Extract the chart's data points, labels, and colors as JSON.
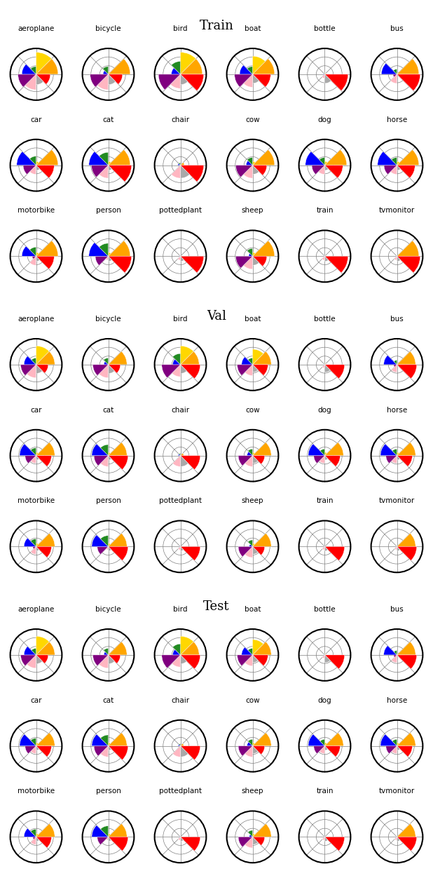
{
  "title_fontsize": 13,
  "label_fontsize": 7.5,
  "colors": {
    "yellow": "#FFD700",
    "orange": "#FFA500",
    "green": "#228B22",
    "red": "#FF0000",
    "blue": "#0000FF",
    "purple": "#800080",
    "pink": "#FFB6C1",
    "gray": "#A9A9A9",
    "lightpink": "#FFB6C1",
    "white": "#FFFFFF"
  },
  "categories": [
    "aeroplane",
    "bicycle",
    "bird",
    "boat",
    "bottle",
    "bus",
    "car",
    "cat",
    "chair",
    "cow",
    "dog",
    "horse",
    "motorbike",
    "person",
    "pottedplant",
    "sheep",
    "train",
    "tvmonitor"
  ],
  "sections": [
    "Train",
    "Val",
    "Test"
  ],
  "sector_colors": [
    "#FFD700",
    "#FFA500",
    "#228B22",
    "#FF0000",
    "#0000FF",
    "#800080",
    "#FFB6C1",
    "#A9A9A9"
  ],
  "train_data": {
    "aeroplane": [
      2.5,
      2.5,
      0.8,
      1.5,
      1.5,
      2.0,
      1.8,
      1.2
    ],
    "bicycle": [
      0.3,
      2.5,
      0.5,
      1.5,
      1.5,
      2.0,
      1.8,
      1.2
    ],
    "bird": [
      2.5,
      2.5,
      1.5,
      2.5,
      1.0,
      2.5,
      1.5,
      1.2
    ],
    "boat": [
      2.0,
      2.5,
      0.8,
      2.0,
      0.5,
      2.0,
      1.5,
      1.0
    ],
    "bottle": [
      0.1,
      0.1,
      0.1,
      2.5,
      0.1,
      0.1,
      0.5,
      0.5
    ],
    "bus": [
      0.1,
      2.5,
      0.5,
      2.5,
      1.5,
      0.5,
      1.0,
      0.3
    ],
    "car": [
      0.5,
      2.5,
      1.0,
      2.0,
      2.0,
      1.5,
      1.0,
      0.5
    ],
    "cat": [
      0.5,
      2.5,
      1.5,
      2.5,
      2.0,
      2.0,
      1.5,
      0.5
    ],
    "chair": [
      0.1,
      0.5,
      0.3,
      2.5,
      2.0,
      0.1,
      1.5,
      1.5
    ],
    "cow": [
      0.5,
      2.5,
      0.5,
      1.5,
      0.8,
      2.0,
      1.5,
      1.0
    ],
    "dog": [
      0.5,
      2.5,
      0.8,
      2.0,
      2.0,
      1.5,
      1.0,
      0.5
    ],
    "horse": [
      0.5,
      2.5,
      0.8,
      2.0,
      2.0,
      1.5,
      1.0,
      0.5
    ],
    "motorbike": [
      0.5,
      2.5,
      1.0,
      2.0,
      1.5,
      0.5,
      1.0,
      0.5
    ],
    "person": [
      0.5,
      2.5,
      1.5,
      2.5,
      2.0,
      1.5,
      0.5,
      0.5
    ],
    "pottedplant": [
      0.1,
      0.1,
      0.1,
      2.5,
      0.1,
      0.1,
      0.5,
      0.5
    ],
    "sheep": [
      0.5,
      2.5,
      0.5,
      1.5,
      0.5,
      2.0,
      1.5,
      1.0
    ],
    "train": [
      0.1,
      0.1,
      0.1,
      2.5,
      0.1,
      0.1,
      1.0,
      0.5
    ],
    "tvmonitor": [
      0.1,
      2.5,
      0.1,
      2.5,
      0.1,
      0.1,
      0.5,
      0.5
    ]
  },
  "val_data": {
    "aeroplane": [
      2.0,
      2.0,
      0.5,
      1.5,
      2.0,
      1.5,
      1.5,
      1.0
    ],
    "bicycle": [
      0.3,
      2.0,
      0.5,
      1.5,
      1.5,
      1.5,
      1.5,
      1.0
    ],
    "bird": [
      2.0,
      2.0,
      1.5,
      2.0,
      1.0,
      2.0,
      1.5,
      1.0
    ],
    "boat": [
      1.5,
      2.0,
      0.5,
      1.5,
      0.5,
      1.5,
      1.5,
      0.8
    ],
    "bottle": [
      0.1,
      0.1,
      0.1,
      2.0,
      0.1,
      0.1,
      0.5,
      0.3
    ],
    "bus": [
      0.1,
      2.0,
      0.5,
      2.0,
      1.5,
      0.5,
      1.0,
      0.3
    ],
    "car": [
      0.5,
      2.0,
      0.8,
      1.5,
      2.0,
      1.5,
      1.0,
      0.5
    ],
    "cat": [
      0.5,
      2.0,
      1.0,
      2.0,
      2.0,
      2.0,
      1.5,
      0.5
    ],
    "chair": [
      0.1,
      0.5,
      0.3,
      2.0,
      1.5,
      0.1,
      1.5,
      1.2
    ],
    "cow": [
      0.5,
      2.0,
      0.5,
      1.5,
      0.8,
      1.5,
      1.5,
      0.8
    ],
    "dog": [
      0.5,
      2.0,
      0.8,
      1.5,
      2.0,
      1.5,
      1.0,
      0.5
    ],
    "horse": [
      0.5,
      2.0,
      0.8,
      1.5,
      2.0,
      1.5,
      1.0,
      0.5
    ],
    "motorbike": [
      0.5,
      2.0,
      0.8,
      1.5,
      1.5,
      0.5,
      1.0,
      0.5
    ],
    "person": [
      0.5,
      2.0,
      1.0,
      2.0,
      2.0,
      1.5,
      0.5,
      0.5
    ],
    "pottedplant": [
      0.1,
      0.1,
      0.1,
      2.0,
      0.1,
      0.1,
      0.5,
      0.3
    ],
    "sheep": [
      0.5,
      2.0,
      0.5,
      1.5,
      0.5,
      1.5,
      1.5,
      0.8
    ],
    "train": [
      0.1,
      0.1,
      0.1,
      2.0,
      0.1,
      0.1,
      1.0,
      0.5
    ],
    "tvmonitor": [
      0.1,
      2.0,
      0.1,
      2.0,
      0.1,
      0.1,
      0.5,
      0.5
    ]
  },
  "test_data": {
    "aeroplane": [
      2.0,
      2.0,
      0.5,
      1.5,
      2.0,
      1.5,
      1.5,
      1.0
    ],
    "bicycle": [
      0.3,
      2.0,
      0.5,
      1.5,
      1.5,
      1.5,
      1.5,
      1.0
    ],
    "bird": [
      2.0,
      2.0,
      1.5,
      2.0,
      1.0,
      2.0,
      1.5,
      1.0
    ],
    "boat": [
      1.5,
      2.0,
      0.5,
      1.5,
      0.5,
      1.5,
      1.5,
      0.8
    ],
    "bottle": [
      0.1,
      0.1,
      0.1,
      2.0,
      0.1,
      0.1,
      0.5,
      0.3
    ],
    "bus": [
      0.1,
      2.0,
      0.5,
      2.0,
      1.5,
      0.5,
      1.0,
      0.3
    ],
    "car": [
      0.5,
      2.0,
      0.8,
      1.5,
      2.0,
      1.5,
      1.0,
      0.5
    ],
    "cat": [
      0.5,
      2.0,
      1.0,
      2.0,
      2.0,
      2.0,
      1.5,
      0.5
    ],
    "chair": [
      0.1,
      0.5,
      0.3,
      2.0,
      1.5,
      0.1,
      1.5,
      1.2
    ],
    "cow": [
      0.5,
      2.0,
      0.5,
      1.5,
      0.8,
      1.5,
      1.5,
      0.8
    ],
    "dog": [
      0.5,
      2.0,
      0.8,
      1.5,
      2.0,
      1.5,
      1.0,
      0.5
    ],
    "horse": [
      0.5,
      2.0,
      0.8,
      1.5,
      2.0,
      1.5,
      1.0,
      0.5
    ],
    "motorbike": [
      0.5,
      2.0,
      0.8,
      1.5,
      1.5,
      0.5,
      1.0,
      0.5
    ],
    "person": [
      0.5,
      2.0,
      1.0,
      2.0,
      2.0,
      1.5,
      0.5,
      0.5
    ],
    "pottedplant": [
      0.1,
      0.1,
      0.1,
      2.0,
      0.1,
      0.1,
      0.5,
      0.3
    ],
    "sheep": [
      0.5,
      2.0,
      0.5,
      1.5,
      0.5,
      1.5,
      1.5,
      0.8
    ],
    "train": [
      0.1,
      0.1,
      0.1,
      2.0,
      0.1,
      0.1,
      1.0,
      0.5
    ],
    "tvmonitor": [
      0.1,
      2.0,
      0.1,
      2.0,
      0.1,
      0.1,
      0.5,
      0.5
    ]
  }
}
